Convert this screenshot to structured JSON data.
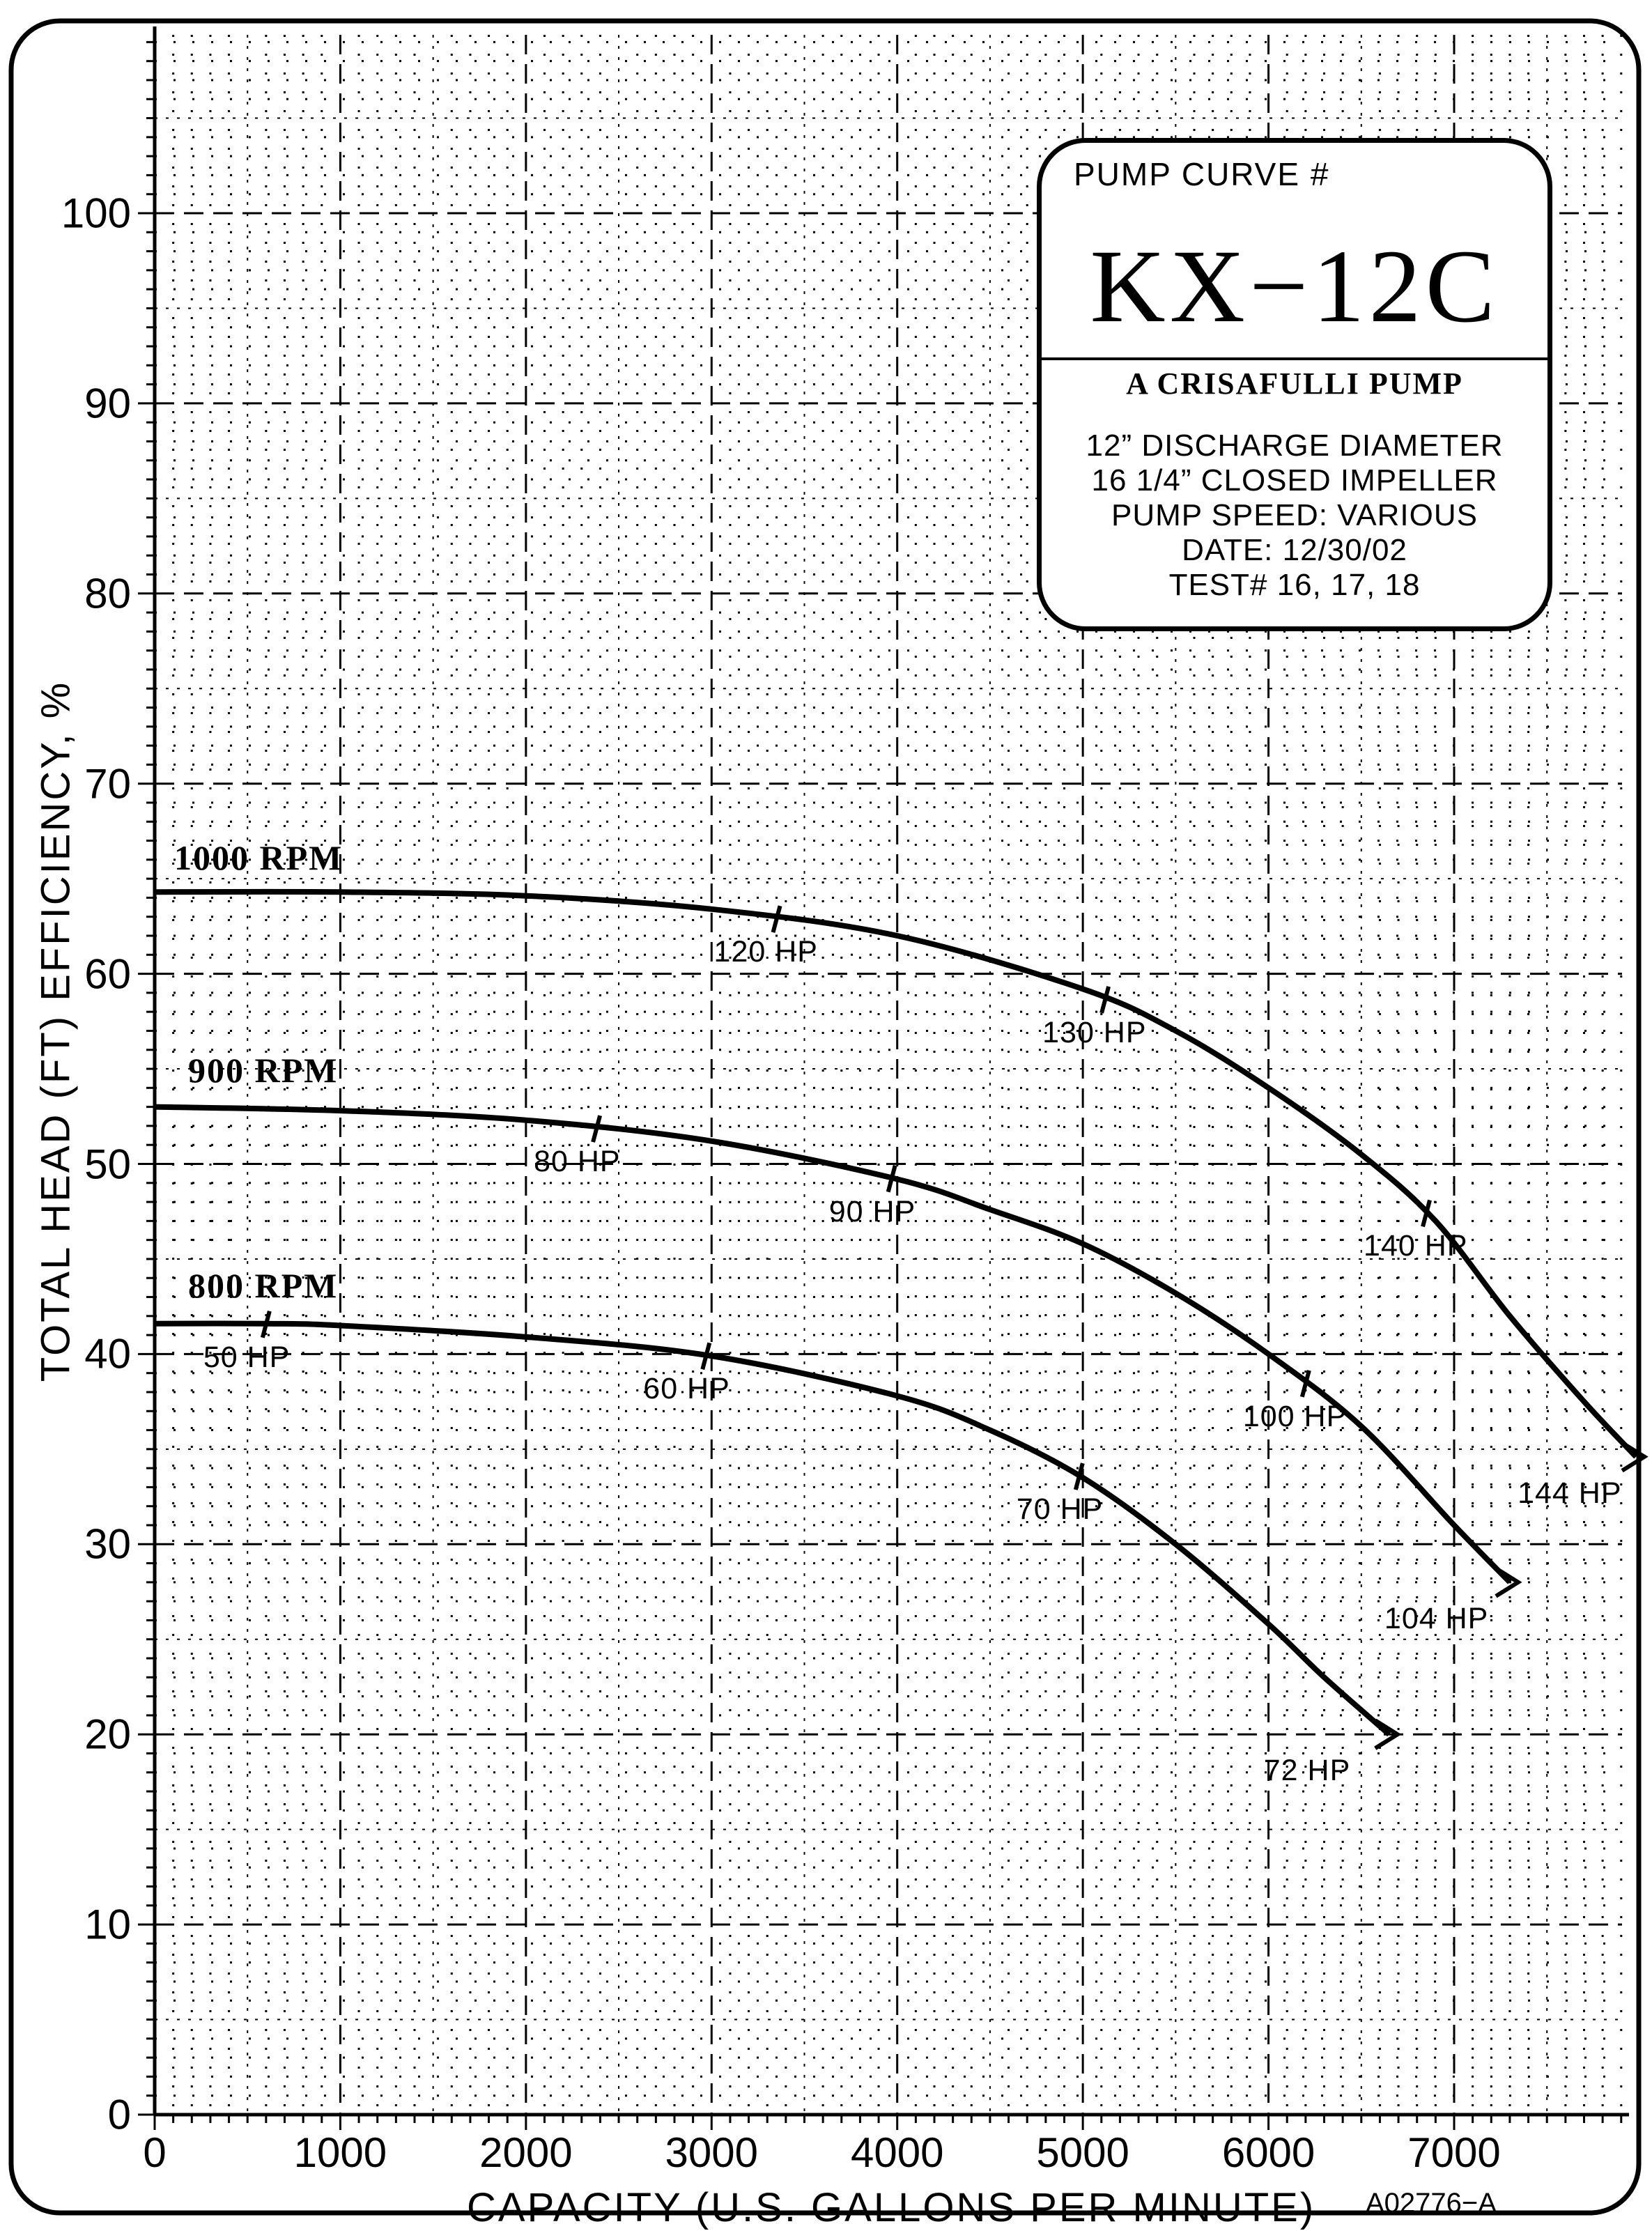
{
  "chart_data": {
    "type": "line",
    "xlabel": "CAPACITY   (U.S. GALLONS PER MINUTE)",
    "ylabel": "TOTAL HEAD (FT)    EFFICIENCY, %",
    "xlim": [
      0,
      8000
    ],
    "ylim": [
      0,
      110
    ],
    "x_ticks": [
      "0",
      "1000",
      "2000",
      "3000",
      "4000",
      "5000",
      "6000",
      "7000"
    ],
    "y_ticks": [
      "0",
      "10",
      "20",
      "30",
      "40",
      "50",
      "60",
      "70",
      "80",
      "90",
      "100"
    ],
    "grid": true,
    "series": [
      {
        "name": "1000 RPM",
        "x": [
          0,
          1000,
          2000,
          3000,
          4000,
          5000,
          5500,
          6000,
          6500,
          6900,
          7300,
          7700,
          7980
        ],
        "y": [
          64.3,
          64.3,
          64.1,
          63.4,
          62.0,
          59.2,
          57.0,
          54.0,
          50.5,
          47.0,
          42.0,
          37.5,
          34.6
        ],
        "markers": [
          {
            "x": 3350,
            "label": "120 HP"
          },
          {
            "x": 5120,
            "label": "130 HP"
          },
          {
            "x": 6850,
            "label": "140 HP"
          },
          {
            "x": 7980,
            "label": "144 HP"
          }
        ]
      },
      {
        "name": "900 RPM",
        "x": [
          0,
          1000,
          2000,
          3000,
          4000,
          4500,
          5000,
          5500,
          6000,
          6500,
          7000,
          7300
        ],
        "y": [
          53.0,
          52.8,
          52.3,
          51.2,
          49.2,
          47.6,
          45.8,
          43.2,
          40.0,
          36.2,
          31.0,
          28.0
        ],
        "markers": [
          {
            "x": 2380,
            "label": "80 HP"
          },
          {
            "x": 3970,
            "label": "90 HP"
          },
          {
            "x": 6200,
            "label": "100 HP"
          },
          {
            "x": 7300,
            "label": "104 HP"
          }
        ]
      },
      {
        "name": "800 RPM",
        "x": [
          0,
          600,
          1000,
          2000,
          3000,
          4000,
          4500,
          5000,
          5500,
          6000,
          6300,
          6650
        ],
        "y": [
          41.6,
          41.6,
          41.5,
          40.9,
          39.9,
          37.8,
          36.0,
          33.5,
          30.0,
          25.8,
          23.0,
          20.0
        ],
        "markers": [
          {
            "x": 600,
            "label": "50 HP"
          },
          {
            "x": 2970,
            "label": "60 HP"
          },
          {
            "x": 4980,
            "label": "70 HP"
          },
          {
            "x": 6650,
            "label": "72 HP"
          }
        ]
      }
    ]
  },
  "info_box": {
    "label": "PUMP CURVE #",
    "model": "KX−12C",
    "maker": "A CRISAFULLI PUMP",
    "specs": [
      "12” DISCHARGE DIAMETER",
      "16 1/4” CLOSED IMPELLER",
      "PUMP SPEED:  VARIOUS",
      "DATE:   12/30/02",
      "TEST# 16, 17, 18"
    ]
  },
  "drawing_number": "A02776−A"
}
